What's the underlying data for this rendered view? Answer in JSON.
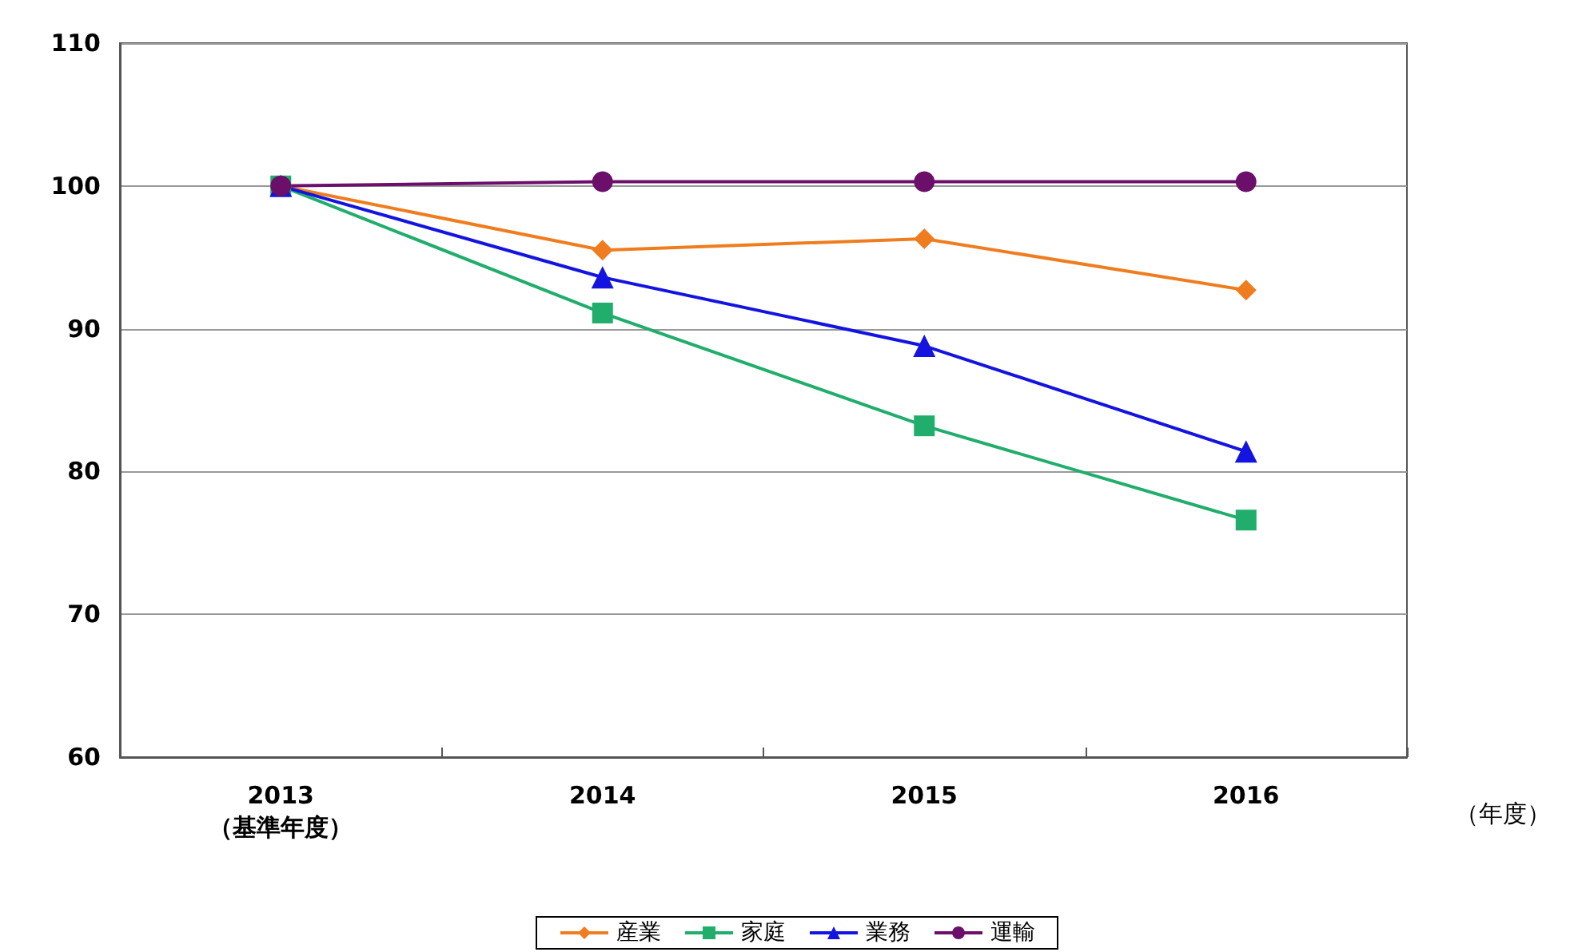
{
  "chart_data": {
    "type": "line",
    "categories": [
      "2013\n（基準年度）",
      "2014",
      "2015",
      "2016"
    ],
    "xlabel": "（年度）",
    "series": [
      {
        "name": "産業",
        "color": "#ef7d1f",
        "marker": "diamond",
        "values": [
          100,
          95.5,
          96.3,
          92.7
        ]
      },
      {
        "name": "家庭",
        "color": "#21ad6c",
        "marker": "square",
        "values": [
          100,
          91.1,
          83.2,
          76.6
        ]
      },
      {
        "name": "業務",
        "color": "#1414e0",
        "marker": "triangle",
        "values": [
          100,
          93.6,
          88.8,
          81.4
        ]
      },
      {
        "name": "運輸",
        "color": "#6b0f6b",
        "marker": "circle",
        "values": [
          100,
          100.3,
          100.3,
          100.3
        ]
      }
    ],
    "ylim": [
      60,
      110
    ],
    "yticks": [
      60,
      70,
      80,
      90,
      100,
      110
    ],
    "grid": "y",
    "legend": "bottom",
    "line_style": "solid"
  }
}
